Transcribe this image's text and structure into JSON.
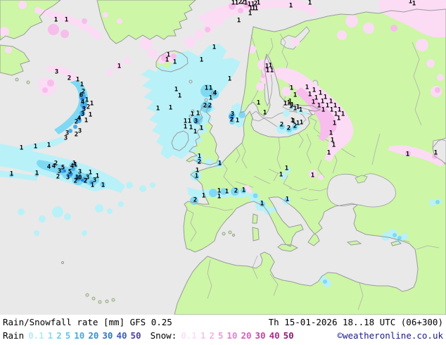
{
  "legend": {
    "title": "Rain/Snowfall rate [mm] GFS 0.25",
    "datetime": "Th 15-01-2026 18..18 UTC (06+300)",
    "rain_label": "Rain",
    "snow_label": "Snow:",
    "copyright": "©weatheronline.co.uk",
    "rain_scale": [
      {
        "v": "0.1",
        "c": "#b4ecf2"
      },
      {
        "v": "1",
        "c": "#8adef0"
      },
      {
        "v": "2",
        "c": "#6cd0f0"
      },
      {
        "v": "5",
        "c": "#58c4ee"
      },
      {
        "v": "10",
        "c": "#44aae4"
      },
      {
        "v": "20",
        "c": "#2f90dc"
      },
      {
        "v": "30",
        "c": "#2a74cc"
      },
      {
        "v": "40",
        "c": "#3b5cc0"
      },
      {
        "v": "50",
        "c": "#4a3eb0"
      }
    ],
    "snow_scale": [
      {
        "v": "0.1",
        "c": "#fbe0f6"
      },
      {
        "v": "1",
        "c": "#f8c6ee"
      },
      {
        "v": "2",
        "c": "#f5b2e8"
      },
      {
        "v": "5",
        "c": "#f09ade"
      },
      {
        "v": "10",
        "c": "#e87ed0"
      },
      {
        "v": "20",
        "c": "#da5cbe"
      },
      {
        "v": "30",
        "c": "#c343a6"
      },
      {
        "v": "40",
        "c": "#ad2a8c"
      },
      {
        "v": "50",
        "c": "#951672"
      }
    ]
  },
  "map": {
    "colors": {
      "sea": "#e9e9e9",
      "land": "#cdf6a6",
      "coast": "#9b9b9b",
      "border": "#b0b0b0",
      "rain_light": "#b9f1f8",
      "rain_mid": "#7fd9f3",
      "rain_strong": "#46aee9",
      "rain_dark": "#2f7fd9",
      "snow_light": "#fbdcf4",
      "snow_mid": "#f7bdec"
    },
    "values": [
      [
        79,
        29,
        "1"
      ],
      [
        94,
        29,
        "1"
      ],
      [
        331,
        5,
        "1"
      ],
      [
        336,
        5,
        "1"
      ],
      [
        341,
        4,
        "2"
      ],
      [
        345,
        4,
        "2"
      ],
      [
        349,
        5,
        "1"
      ],
      [
        354,
        7,
        "1"
      ],
      [
        359,
        7,
        "1"
      ],
      [
        363,
        6,
        "2"
      ],
      [
        367,
        5,
        "1"
      ],
      [
        356,
        13,
        "1"
      ],
      [
        360,
        13,
        "1"
      ],
      [
        364,
        13,
        "1"
      ],
      [
        355,
        20,
        "1"
      ],
      [
        339,
        30,
        "1"
      ],
      [
        413,
        9,
        "1"
      ],
      [
        440,
        5,
        "1"
      ],
      [
        583,
        3,
        "1"
      ],
      [
        588,
        6,
        "1"
      ],
      [
        80,
        103,
        "3"
      ],
      [
        98,
        112,
        "2"
      ],
      [
        110,
        114,
        "1"
      ],
      [
        116,
        121,
        "1"
      ],
      [
        118,
        131,
        "2"
      ],
      [
        115,
        136,
        "6"
      ],
      [
        123,
        143,
        "1"
      ],
      [
        117,
        146,
        "4"
      ],
      [
        130,
        148,
        "1"
      ],
      [
        125,
        153,
        "2"
      ],
      [
        119,
        156,
        "3"
      ],
      [
        117,
        163,
        "3"
      ],
      [
        128,
        164,
        "1"
      ],
      [
        112,
        169,
        "4"
      ],
      [
        108,
        174,
        "2"
      ],
      [
        122,
        172,
        "1"
      ],
      [
        113,
        187,
        "3"
      ],
      [
        108,
        192,
        "2"
      ],
      [
        95,
        190,
        "3"
      ],
      [
        93,
        197,
        "3"
      ],
      [
        30,
        211,
        "1"
      ],
      [
        50,
        209,
        "1"
      ],
      [
        69,
        207,
        "1"
      ],
      [
        239,
        79,
        "1"
      ],
      [
        237,
        86,
        "1"
      ],
      [
        248,
        89,
        "1"
      ],
      [
        304,
        68,
        "1"
      ],
      [
        286,
        86,
        "1"
      ],
      [
        169,
        95,
        "1"
      ],
      [
        250,
        128,
        "1"
      ],
      [
        255,
        137,
        "1"
      ],
      [
        224,
        155,
        "1"
      ],
      [
        242,
        154,
        "1"
      ],
      [
        293,
        126,
        "1"
      ],
      [
        299,
        126,
        "1"
      ],
      [
        305,
        133,
        "4"
      ],
      [
        299,
        140,
        "1"
      ],
      [
        291,
        151,
        "2"
      ],
      [
        298,
        151,
        "2"
      ],
      [
        273,
        163,
        "1"
      ],
      [
        281,
        162,
        "1"
      ],
      [
        278,
        173,
        "3"
      ],
      [
        263,
        173,
        "1"
      ],
      [
        269,
        173,
        "1"
      ],
      [
        263,
        181,
        "1"
      ],
      [
        271,
        182,
        "1"
      ],
      [
        286,
        183,
        "1"
      ],
      [
        277,
        188,
        "1"
      ],
      [
        330,
        163,
        "3"
      ],
      [
        329,
        171,
        "2"
      ],
      [
        337,
        172,
        "1"
      ],
      [
        367,
        147,
        "1"
      ],
      [
        376,
        161,
        "1"
      ],
      [
        412,
        145,
        "1"
      ],
      [
        413,
        152,
        "1"
      ],
      [
        379,
        95,
        "1"
      ],
      [
        384,
        94,
        "1"
      ],
      [
        380,
        101,
        "1"
      ],
      [
        386,
        101,
        "1"
      ],
      [
        326,
        113,
        "1"
      ],
      [
        405,
        148,
        "1"
      ],
      [
        410,
        147,
        "1"
      ],
      [
        415,
        150,
        "1"
      ],
      [
        419,
        155,
        "1"
      ],
      [
        423,
        153,
        "1"
      ],
      [
        427,
        157,
        "1"
      ],
      [
        415,
        172,
        "1"
      ],
      [
        417,
        173,
        "1"
      ],
      [
        423,
        176,
        "1"
      ],
      [
        428,
        175,
        "1"
      ],
      [
        400,
        178,
        "2"
      ],
      [
        410,
        183,
        "2"
      ],
      [
        419,
        180,
        "2"
      ],
      [
        414,
        126,
        "1"
      ],
      [
        419,
        136,
        "1"
      ],
      [
        436,
        125,
        "1"
      ],
      [
        446,
        129,
        "1"
      ],
      [
        440,
        135,
        "1"
      ],
      [
        455,
        133,
        "1"
      ],
      [
        449,
        140,
        "1"
      ],
      [
        462,
        139,
        "1"
      ],
      [
        445,
        146,
        "1"
      ],
      [
        458,
        145,
        "1"
      ],
      [
        470,
        145,
        "1"
      ],
      [
        453,
        151,
        "1"
      ],
      [
        465,
        151,
        "1"
      ],
      [
        476,
        151,
        "1"
      ],
      [
        459,
        157,
        "1"
      ],
      [
        471,
        157,
        "1"
      ],
      [
        482,
        157,
        "1"
      ],
      [
        477,
        163,
        "1"
      ],
      [
        487,
        163,
        "1"
      ],
      [
        481,
        169,
        "1"
      ],
      [
        475,
        176,
        "1"
      ],
      [
        470,
        190,
        "1"
      ],
      [
        472,
        200,
        "1"
      ],
      [
        474,
        207,
        "1"
      ],
      [
        467,
        218,
        "1"
      ],
      [
        579,
        220,
        "1"
      ],
      [
        619,
        218,
        "1"
      ],
      [
        283,
        223,
        "1"
      ],
      [
        283,
        231,
        "2"
      ],
      [
        312,
        233,
        "1"
      ],
      [
        280,
        243,
        "1"
      ],
      [
        279,
        251,
        "1"
      ],
      [
        277,
        285,
        "2"
      ],
      [
        289,
        279,
        "1"
      ],
      [
        311,
        272,
        "1"
      ],
      [
        311,
        280,
        "1"
      ],
      [
        322,
        273,
        "1"
      ],
      [
        335,
        272,
        "2"
      ],
      [
        346,
        271,
        "1"
      ],
      [
        372,
        290,
        "1"
      ],
      [
        408,
        284,
        "1"
      ],
      [
        407,
        240,
        "1"
      ],
      [
        399,
        249,
        "1"
      ],
      [
        444,
        250,
        "1"
      ],
      [
        16,
        248,
        "1"
      ],
      [
        52,
        247,
        "1"
      ],
      [
        79,
        233,
        "2"
      ],
      [
        105,
        233,
        "1"
      ],
      [
        69,
        238,
        "4"
      ],
      [
        76,
        237,
        "4"
      ],
      [
        89,
        239,
        "5"
      ],
      [
        102,
        237,
        "4"
      ],
      [
        107,
        235,
        "1"
      ],
      [
        84,
        244,
        "3"
      ],
      [
        99,
        245,
        "5"
      ],
      [
        113,
        245,
        "3"
      ],
      [
        128,
        246,
        "1"
      ],
      [
        82,
        252,
        "2"
      ],
      [
        96,
        253,
        "3"
      ],
      [
        111,
        253,
        "10"
      ],
      [
        124,
        253,
        "3"
      ],
      [
        138,
        251,
        "1"
      ],
      [
        107,
        258,
        "2"
      ],
      [
        121,
        258,
        "2"
      ],
      [
        134,
        257,
        "3"
      ],
      [
        131,
        264,
        "1"
      ],
      [
        146,
        264,
        "1"
      ]
    ]
  }
}
